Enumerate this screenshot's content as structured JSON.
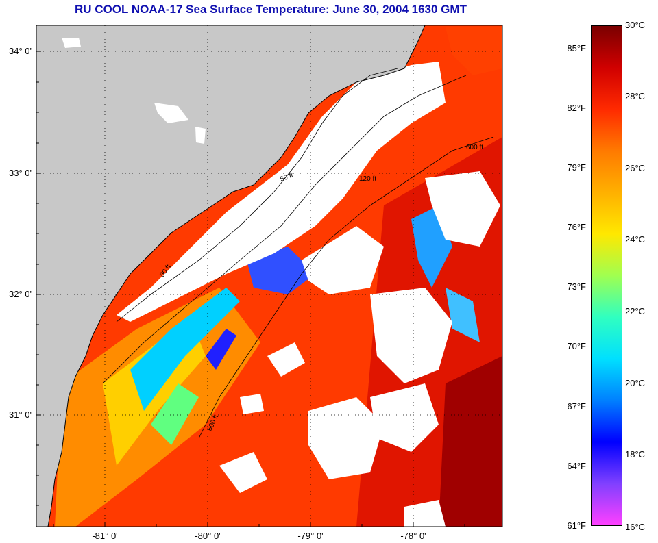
{
  "title": "RU COOL  NOAA-17  Sea Surface Temperature:  June 30, 2004 1630 GMT",
  "map": {
    "land_color": "#c8c8c8",
    "cloud_color": "#ffffff",
    "contour_labels": [
      "50 ft",
      "120 ft",
      "600 ft"
    ],
    "lat_ticks": [
      "34° 0'",
      "33° 0'",
      "32° 0'",
      "31° 0'"
    ],
    "lon_ticks": [
      "-81° 0'",
      "-80° 0'",
      "-79° 0'",
      "-78° 0'"
    ]
  },
  "colorbar": {
    "range_c": [
      16,
      30
    ],
    "fahrenheit_labels": [
      "85°F",
      "82°F",
      "79°F",
      "76°F",
      "73°F",
      "70°F",
      "67°F",
      "64°F",
      "61°F"
    ],
    "celsius_labels": [
      "30°C",
      "28°C",
      "26°C",
      "24°C",
      "22°C",
      "20°C",
      "18°C",
      "16°C"
    ],
    "colors": [
      "#7a0000",
      "#d00000",
      "#ff2a00",
      "#ff7a00",
      "#ffb000",
      "#ffe800",
      "#a0ff50",
      "#30ffc0",
      "#00e0ff",
      "#0080ff",
      "#0000ff",
      "#8040ff",
      "#ff40ff"
    ]
  }
}
